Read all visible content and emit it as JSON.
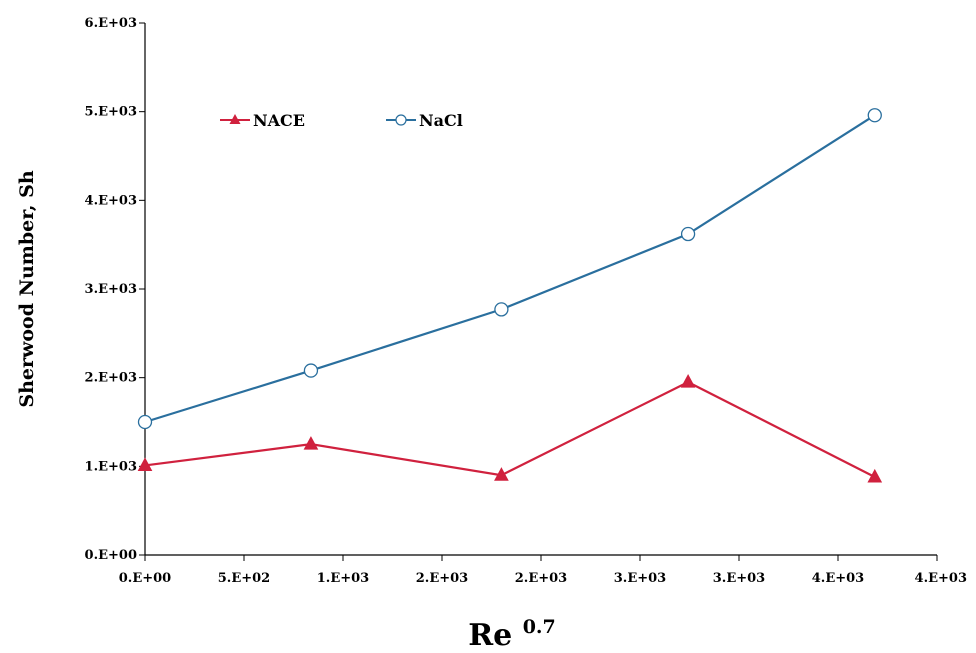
{
  "chart_data": {
    "type": "line",
    "title": "",
    "xlabel": "Re",
    "xlabel_sup": "0.7",
    "ylabel": "Sherwood  Number, Sh",
    "xlim": [
      0,
      4200
    ],
    "ylim": [
      0,
      6000
    ],
    "x_ticks": [
      {
        "value": 0,
        "label": "0.E+00"
      },
      {
        "value": 525,
        "label": "5.E+02"
      },
      {
        "value": 1050,
        "label": "1.E+03"
      },
      {
        "value": 1575,
        "label": "2.E+03"
      },
      {
        "value": 2100,
        "label": "2.E+03"
      },
      {
        "value": 2625,
        "label": "3.E+03"
      },
      {
        "value": 3150,
        "label": "3.E+03"
      },
      {
        "value": 3675,
        "label": "4.E+03"
      },
      {
        "value": 4200,
        "label": "4.E+03"
      }
    ],
    "y_ticks": [
      {
        "value": 0,
        "label": "0.E+00"
      },
      {
        "value": 1000,
        "label": "1.E+03"
      },
      {
        "value": 2000,
        "label": "2.E+03"
      },
      {
        "value": 3000,
        "label": "3.E+03"
      },
      {
        "value": 4000,
        "label": "4.E+03"
      },
      {
        "value": 5000,
        "label": "5.E+03"
      },
      {
        "value": 6000,
        "label": "6.E+03"
      }
    ],
    "grid": false,
    "legend_position": "top-left",
    "series": [
      {
        "name": "NACE",
        "color": "#d0213e",
        "marker": "triangle",
        "x": [
          0,
          880,
          1890,
          2880,
          3870
        ],
        "y": [
          1010,
          1250,
          900,
          1950,
          880
        ]
      },
      {
        "name": "NaCl",
        "color": "#2a6f9e",
        "marker": "open-circle",
        "x": [
          0,
          880,
          1890,
          2880,
          3870
        ],
        "y": [
          1500,
          2080,
          2770,
          3620,
          4960
        ]
      }
    ]
  }
}
